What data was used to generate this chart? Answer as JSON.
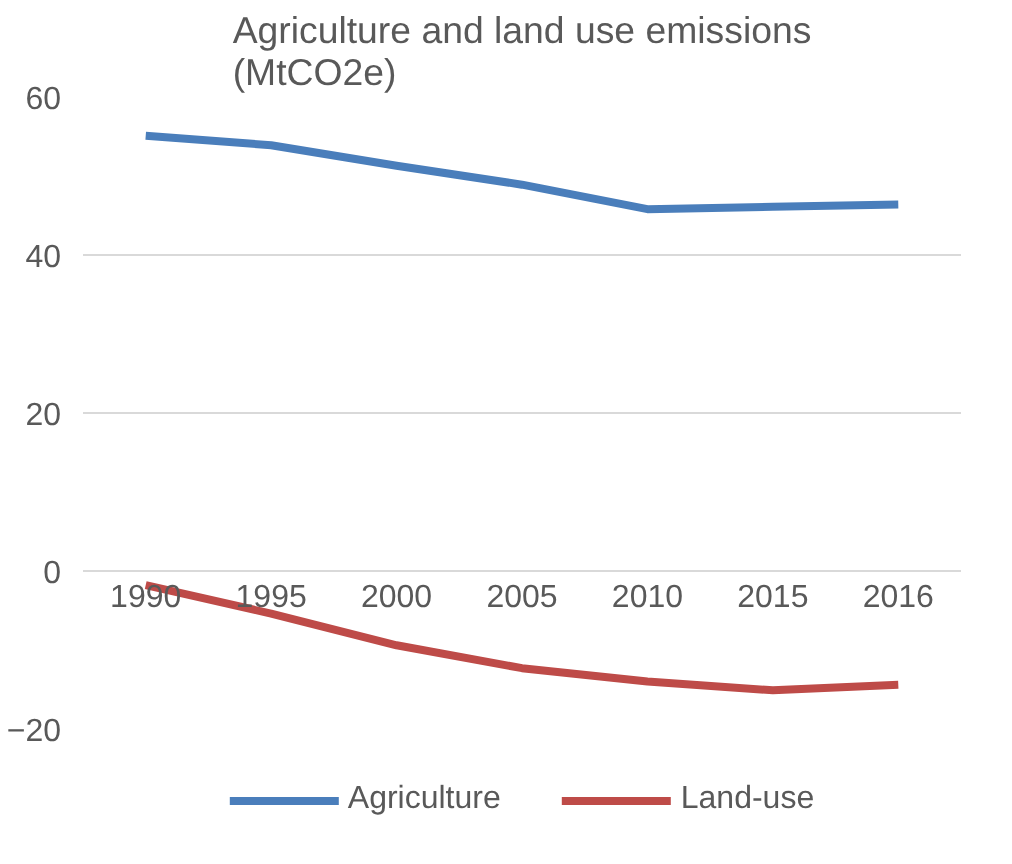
{
  "chart_data": {
    "type": "line",
    "title": "Agriculture and land use emissions (MtCO2e)",
    "categories": [
      "1990",
      "1995",
      "2000",
      "2005",
      "2010",
      "2015",
      "2016"
    ],
    "series": [
      {
        "name": "Agriculture",
        "color": "#4a7ebb",
        "values": [
          55.1,
          53.9,
          51.3,
          48.9,
          45.8,
          46.1,
          46.4
        ]
      },
      {
        "name": "Land-use",
        "color": "#be4b48",
        "values": [
          -1.8,
          -5.4,
          -9.4,
          -12.3,
          -14.0,
          -15.1,
          -14.4
        ]
      }
    ],
    "ylim": [
      -20,
      60
    ],
    "yticks": [
      -20,
      0,
      20,
      40,
      60
    ],
    "grid": "y",
    "legend": "bottom",
    "marker": "none",
    "line_style": "solid"
  }
}
